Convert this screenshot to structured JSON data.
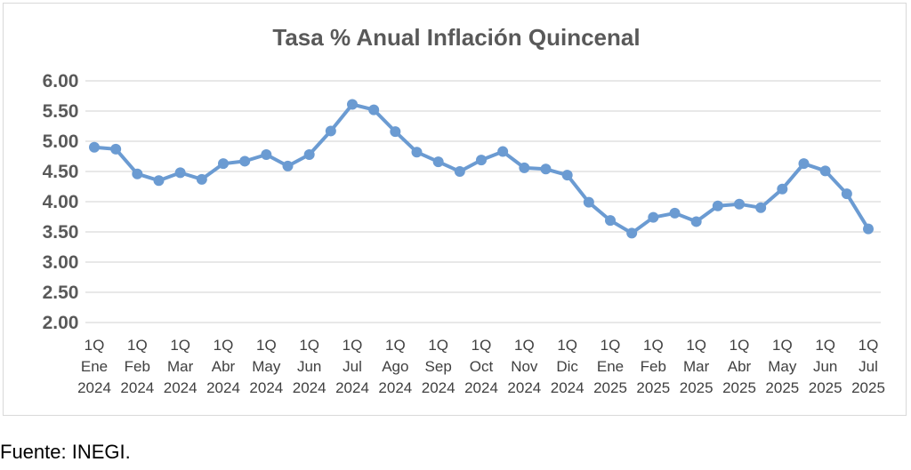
{
  "source_note": "Fuente: INEGI.",
  "chart_data": {
    "type": "line",
    "title": "Tasa % Anual Inflación Quincenal",
    "xlabel": "",
    "ylabel": "",
    "ylim": [
      2.0,
      6.0
    ],
    "yticks": [
      "2.00",
      "2.50",
      "3.00",
      "3.50",
      "4.00",
      "4.50",
      "5.00",
      "5.50",
      "6.00"
    ],
    "grid": true,
    "line_color": "#6b9bd2",
    "x_tick_labels": [
      [
        "1Q",
        "Ene",
        "2024"
      ],
      [
        "1Q",
        "Feb",
        "2024"
      ],
      [
        "1Q",
        "Mar",
        "2024"
      ],
      [
        "1Q",
        "Abr",
        "2024"
      ],
      [
        "1Q",
        "May",
        "2024"
      ],
      [
        "1Q",
        "Jun",
        "2024"
      ],
      [
        "1Q",
        "Jul",
        "2024"
      ],
      [
        "1Q",
        "Ago",
        "2024"
      ],
      [
        "1Q",
        "Sep",
        "2024"
      ],
      [
        "1Q",
        "Oct",
        "2024"
      ],
      [
        "1Q",
        "Nov",
        "2024"
      ],
      [
        "1Q",
        "Dic",
        "2024"
      ],
      [
        "1Q",
        "Ene",
        "2025"
      ],
      [
        "1Q",
        "Feb",
        "2025"
      ],
      [
        "1Q",
        "Mar",
        "2025"
      ],
      [
        "1Q",
        "Abr",
        "2025"
      ],
      [
        "1Q",
        "May",
        "2025"
      ],
      [
        "1Q",
        "Jun",
        "2025"
      ],
      [
        "1Q",
        "Jul",
        "2025"
      ]
    ],
    "series": [
      {
        "values": [
          4.9,
          4.87,
          4.46,
          4.35,
          4.48,
          4.37,
          4.63,
          4.67,
          4.78,
          4.59,
          4.78,
          5.17,
          5.61,
          5.52,
          5.16,
          4.82,
          4.66,
          4.5,
          4.69,
          4.83,
          4.56,
          4.54,
          4.44,
          3.99,
          3.69,
          3.48,
          3.74,
          3.81,
          3.67,
          3.93,
          3.96,
          3.9,
          4.21,
          4.63,
          4.51,
          4.13,
          3.55
        ]
      }
    ]
  }
}
